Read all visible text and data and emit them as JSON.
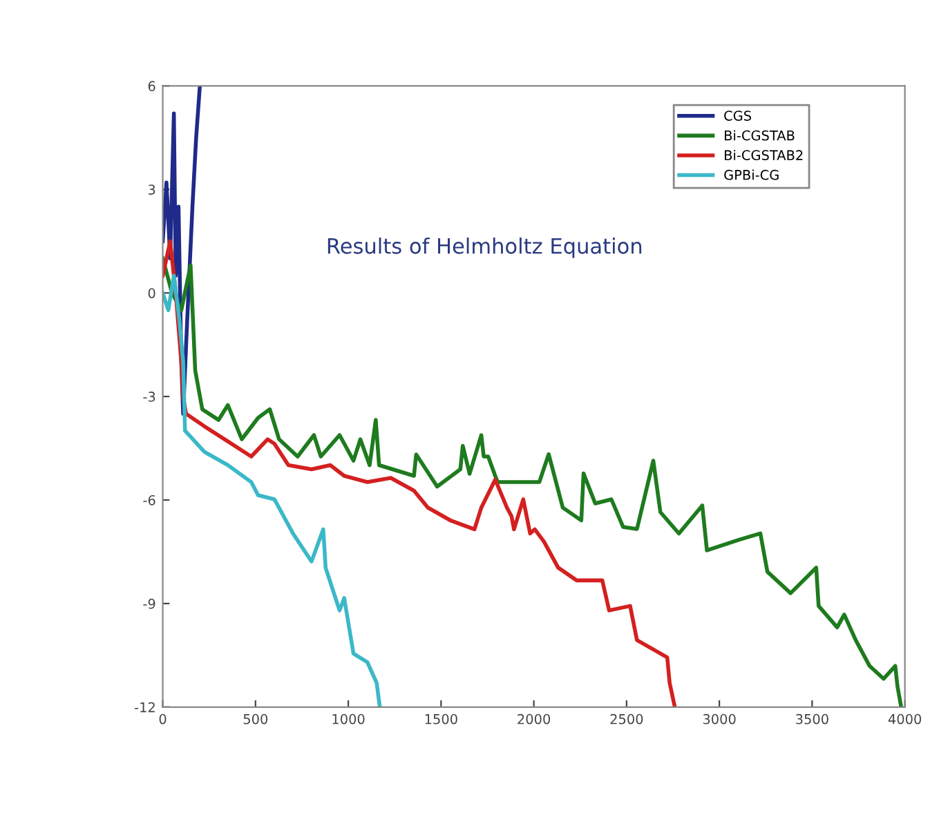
{
  "chart_data": {
    "type": "line",
    "annotations": [
      "Results of Helmholtz Equation"
    ],
    "xlim": [
      0,
      4000
    ],
    "xticks": [
      0,
      500,
      1000,
      1500,
      2000,
      2500,
      3000,
      3500,
      4000
    ],
    "ylim": [
      -12,
      6
    ],
    "yticks": [
      -12,
      -9,
      -6,
      -3,
      0,
      3,
      6
    ],
    "grid": false,
    "legend": "top right",
    "series": [
      {
        "name": "CGS",
        "color": "#1f2a8a",
        "x": [
          0,
          20,
          40,
          60,
          70,
          85,
          100,
          110,
          130,
          160,
          180,
          200
        ],
        "values": [
          1.5,
          3.2,
          1.0,
          5.2,
          0.5,
          2.5,
          -2,
          -3.5,
          -1,
          2.5,
          4.5,
          6
        ]
      },
      {
        "name": "Bi-CGSTAB",
        "color": "#1e7b1e",
        "x": [
          0,
          50,
          100,
          150,
          175,
          213,
          301,
          351,
          426,
          514,
          577,
          627,
          727,
          815,
          852,
          953,
          1028,
          1065,
          1115,
          1148,
          1166,
          1354,
          1366,
          1479,
          1604,
          1617,
          1654,
          1717,
          1730,
          1754,
          1792,
          1805,
          1980,
          2030,
          2080,
          2156,
          2256,
          2268,
          2331,
          2418,
          2481,
          2556,
          2644,
          2682,
          2782,
          2908,
          2933,
          3108,
          3221,
          3259,
          3384,
          3522,
          3535,
          3635,
          3673,
          3735,
          3810,
          3885,
          3948,
          3960,
          3980
        ],
        "values": [
          1,
          0,
          -0.5,
          0.8,
          -2.25,
          -3.37,
          -3.68,
          -3.25,
          -4.24,
          -3.62,
          -3.37,
          -4.24,
          -4.74,
          -4.12,
          -4.74,
          -4.12,
          -4.86,
          -4.24,
          -4.99,
          -3.68,
          -4.99,
          -5.3,
          -4.68,
          -5.61,
          -5.11,
          -4.43,
          -5.24,
          -4.12,
          -4.74,
          -4.74,
          -5.3,
          -5.48,
          -5.48,
          -5.48,
          -4.67,
          -6.22,
          -6.59,
          -5.23,
          -6.1,
          -5.98,
          -6.78,
          -6.84,
          -4.86,
          -6.35,
          -6.97,
          -6.16,
          -7.46,
          -7.15,
          -6.97,
          -8.08,
          -8.7,
          -7.96,
          -9.07,
          -9.69,
          -9.32,
          -10.06,
          -10.81,
          -11.18,
          -10.81,
          -11.4,
          -12
        ]
      },
      {
        "name": "Bi-CGSTAB2",
        "color": "#d42020",
        "x": [
          0,
          40,
          70,
          100,
          110,
          125,
          226,
          351,
          477,
          565,
          602,
          677,
          802,
          903,
          978,
          1103,
          1229,
          1354,
          1429,
          1554,
          1680,
          1717,
          1792,
          1855,
          1880,
          1893,
          1943,
          1980,
          2005,
          2055,
          2131,
          2231,
          2369,
          2406,
          2519,
          2556,
          2719,
          2732,
          2760
        ],
        "values": [
          0.5,
          1.5,
          0,
          -2,
          -3,
          -3.5,
          -3.87,
          -4.3,
          -4.74,
          -4.24,
          -4.37,
          -4.99,
          -5.11,
          -4.99,
          -5.3,
          -5.48,
          -5.36,
          -5.73,
          -6.22,
          -6.6,
          -6.85,
          -6.22,
          -5.41,
          -6.22,
          -6.47,
          -6.85,
          -5.98,
          -6.97,
          -6.85,
          -7.21,
          -7.96,
          -8.33,
          -8.33,
          -9.2,
          -9.07,
          -10.06,
          -10.56,
          -11.3,
          -12
        ]
      },
      {
        "name": "GPBi-CG",
        "color": "#3bb8c8",
        "x": [
          0,
          30,
          60,
          90,
          110,
          120,
          226,
          351,
          477,
          514,
          602,
          702,
          802,
          865,
          878,
          953,
          978,
          1028,
          1103,
          1153,
          1170
        ],
        "values": [
          0,
          -0.5,
          0.5,
          -0.8,
          -2,
          -3.99,
          -4.61,
          -4.99,
          -5.48,
          -5.86,
          -5.98,
          -6.97,
          -7.78,
          -6.85,
          -7.97,
          -9.2,
          -8.84,
          -10.45,
          -10.7,
          -11.3,
          -12
        ]
      }
    ]
  }
}
